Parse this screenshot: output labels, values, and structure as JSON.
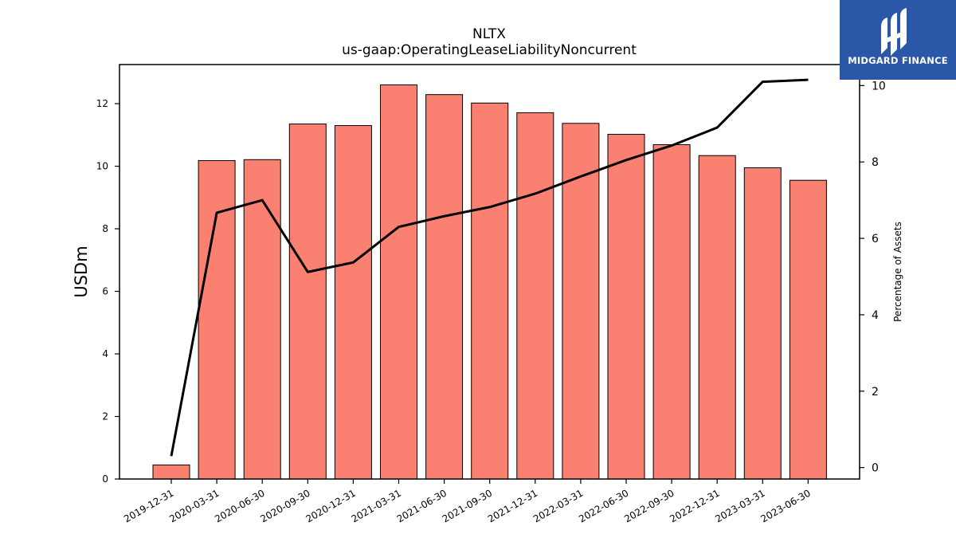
{
  "brand": {
    "name": "MIDGARD FINANCE",
    "background_color": "#2b57a8",
    "icon": "midgard-logo-icon"
  },
  "chart_data": {
    "type": "bar",
    "title": "NLTX",
    "subtitle": "us-gaap:OperatingLeaseLiabilityNoncurrent",
    "ylabel": "USDm",
    "y2label": "Percentage of Assets",
    "categories": [
      "2019-12-31",
      "2020-03-31",
      "2020-06-30",
      "2020-09-30",
      "2020-12-31",
      "2021-03-31",
      "2021-06-30",
      "2021-09-30",
      "2021-12-31",
      "2022-03-31",
      "2022-06-30",
      "2022-09-30",
      "2022-12-31",
      "2023-03-31",
      "2023-06-30"
    ],
    "series": [
      {
        "kind": "bar",
        "axis": "left",
        "color": "#fa8072",
        "values": [
          0.45,
          10.18,
          10.21,
          11.35,
          11.3,
          12.6,
          12.29,
          12.02,
          11.71,
          11.37,
          11.02,
          10.69,
          10.34,
          9.95,
          9.55
        ]
      },
      {
        "kind": "line",
        "axis": "right",
        "color": "#000000",
        "values": [
          0.3,
          6.67,
          7.0,
          5.12,
          5.37,
          6.3,
          6.58,
          6.82,
          7.17,
          7.62,
          8.05,
          8.43,
          8.9,
          10.1,
          10.15
        ]
      }
    ],
    "ylim": [
      0,
      13.25
    ],
    "y2lim": [
      -0.3,
      10.55
    ],
    "yticks": [
      "0",
      "2",
      "4",
      "6",
      "8",
      "10",
      "12"
    ],
    "y2ticks": [
      "0",
      "2",
      "4",
      "6",
      "8",
      "10"
    ],
    "grid": false,
    "legend": "none"
  }
}
